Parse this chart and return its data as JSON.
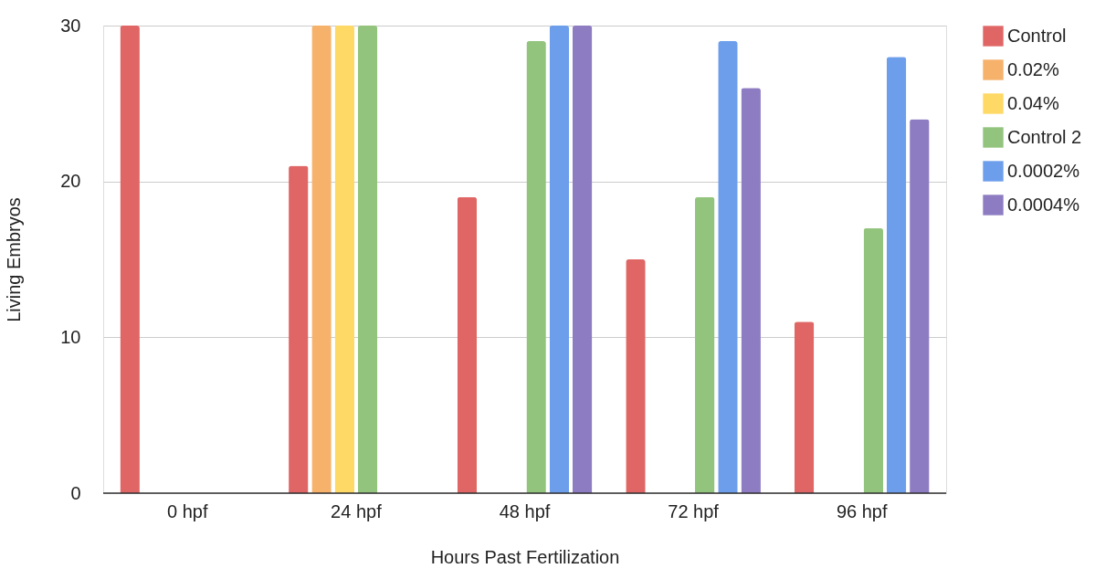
{
  "chart_data": {
    "type": "bar",
    "xlabel": "Hours Past Fertilization",
    "ylabel": "Living Embryos",
    "categories": [
      "0 hpf",
      "24 hpf",
      "48 hpf",
      "72 hpf",
      "96 hpf"
    ],
    "series": [
      {
        "name": "Control",
        "color": "#e06666",
        "values": [
          30,
          21,
          19,
          15,
          11
        ]
      },
      {
        "name": "0.02%",
        "color": "#f6b26b",
        "values": [
          null,
          30,
          null,
          null,
          null
        ]
      },
      {
        "name": "0.04%",
        "color": "#ffd966",
        "values": [
          null,
          30,
          null,
          null,
          null
        ]
      },
      {
        "name": "Control 2",
        "color": "#93c47d",
        "values": [
          null,
          30,
          29,
          19,
          17
        ]
      },
      {
        "name": "0.0002%",
        "color": "#6d9eeb",
        "values": [
          null,
          null,
          30,
          29,
          28
        ]
      },
      {
        "name": "0.0004%",
        "color": "#8e7cc3",
        "values": [
          null,
          null,
          30,
          26,
          24
        ]
      }
    ],
    "ylim": [
      0,
      30
    ],
    "yticks": [
      0,
      10,
      20,
      30
    ],
    "grid": "y",
    "legend": "top right"
  }
}
